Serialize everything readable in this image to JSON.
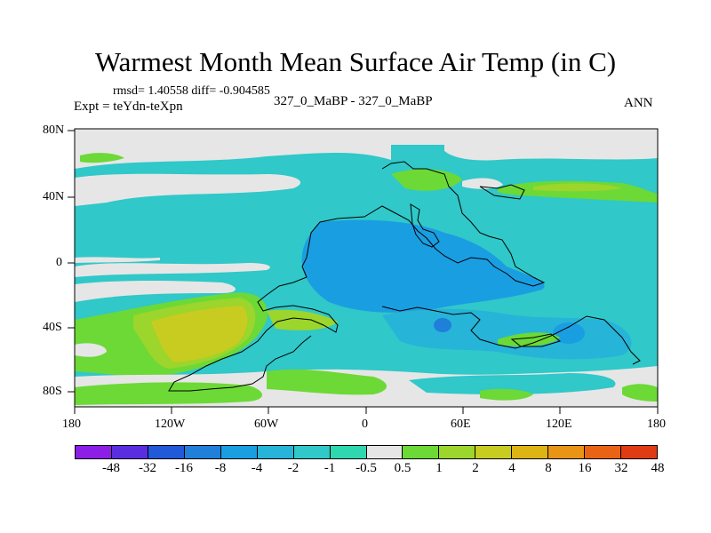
{
  "title": "Warmest Month Mean Surface Air Temp (in C)",
  "stats_text": "rmsd= 1.40558 diff= -0.904585",
  "expt_text": "Expt = teYdn-teXpn",
  "center_label": "327_0_MaBP - 327_0_MaBP",
  "season_label": "ANN",
  "y_tick_labels": [
    "80N",
    "40N",
    "0",
    "40S",
    "80S"
  ],
  "x_tick_labels": [
    "180",
    "120W",
    "60W",
    "0",
    "60E",
    "120E",
    "180"
  ],
  "colorbar": {
    "labels": [
      "-48",
      "-32",
      "-16",
      "-8",
      "-4",
      "-2",
      "-1",
      "-0.5",
      "0.5",
      "1",
      "2",
      "4",
      "8",
      "16",
      "32",
      "48"
    ],
    "colors": [
      "#8c1ee6",
      "#5a2ee0",
      "#2159d8",
      "#1f7fd9",
      "#1a9ee2",
      "#26b4d8",
      "#30c8c8",
      "#2fd7b0",
      "#e6e6e6",
      "#6cd936",
      "#9cd52c",
      "#c8cc20",
      "#dcb414",
      "#e89414",
      "#e86414",
      "#e03c14"
    ]
  },
  "palette": {
    "background": "#ffffff",
    "neutral": "#e6e6e6",
    "anomaly_weak_cool": "#30c8c8",
    "anomaly_cool": "#1a9ee2",
    "anomaly_weak_warm": "#6cd936",
    "anomaly_warm": "#c8cc20",
    "land_outline": "#000000"
  }
}
